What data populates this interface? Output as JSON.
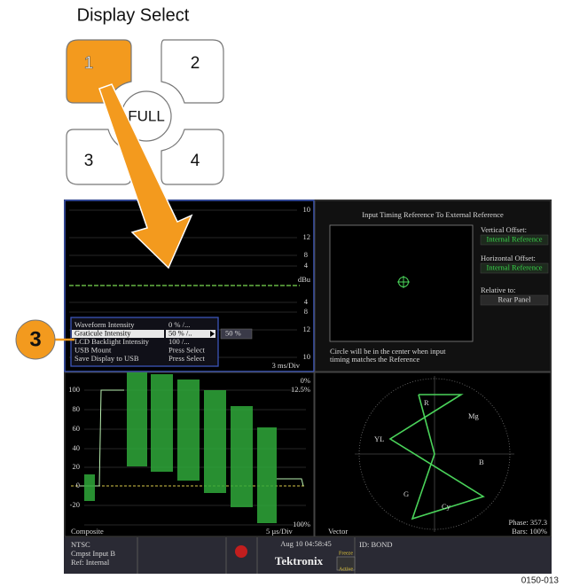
{
  "title": "Display Select",
  "buttons": [
    "1",
    "2",
    "3",
    "4",
    "FULL"
  ],
  "callout": "3",
  "waveform_panel": {
    "scale": [
      "10",
      "12",
      "8",
      "4",
      "dBu",
      "4",
      "8",
      "12",
      "10"
    ],
    "timebase": "3 ms/Div"
  },
  "menu": {
    "rows": [
      [
        "Waveform Intensity",
        "0 %  /..."
      ],
      [
        "Graticule Intensity",
        "50 %  /.."
      ],
      [
        "LCD Backlight Intensity",
        "100  /..."
      ],
      [
        "USB Mount",
        "Press Select"
      ],
      [
        "Save Display to USB",
        "Press Select"
      ]
    ],
    "submenu": "50 %"
  },
  "timing_panel": {
    "title": "Input Timing Reference To External Reference",
    "vertical_label": "Vertical Offset:",
    "vertical_value": "Internal Reference",
    "horizontal_label": "Horizontal Offset:",
    "horizontal_value": "Internal Reference",
    "relative_label": "Relative to:",
    "relative_value": "Rear Panel",
    "note": [
      "Circle will be in the center when input",
      "timing matches the Reference"
    ]
  },
  "composite_panel": {
    "left_scale": [
      "100",
      "80",
      "60",
      "40",
      "20",
      "0",
      "-20"
    ],
    "right_scale": [
      "0%",
      "12.5%",
      "100%"
    ],
    "name": "Composite",
    "timebase": "5 µs/Div"
  },
  "vector_panel": {
    "name": "Vector",
    "targets": [
      "R",
      "Mg",
      "B",
      "Cy",
      "G",
      "YL"
    ],
    "phase": "Phase: 357.3",
    "bars": "Bars: 100%"
  },
  "status_bar": {
    "format": "NTSC",
    "input": "Cmpst Input B",
    "reference": "Ref: Internal",
    "datetime": "Aug 10 04:58:45",
    "brand": "Tektronix",
    "freeze": "Freeze",
    "active": "Active",
    "id": "ID: BOND"
  },
  "figure_id": "0150-013"
}
